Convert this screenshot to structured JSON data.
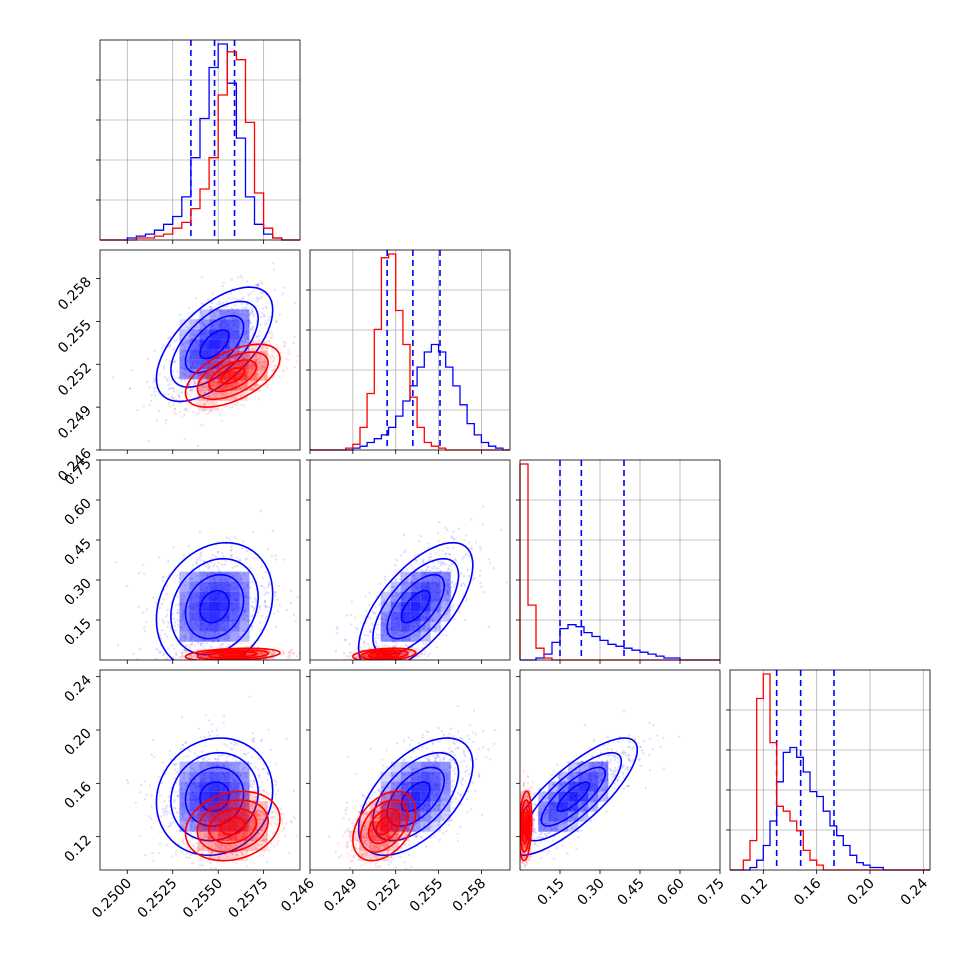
{
  "chart_data": {
    "type": "corner",
    "grid": true,
    "colors": {
      "blue": "#0000ff",
      "red": "#ff0000"
    },
    "series": [
      {
        "color": "#0000ff",
        "quantiles_dashed": {
          "p0": [
            0.2535,
            0.2548,
            0.2559
          ],
          "p1": [
            0.2514,
            0.2532,
            0.2551
          ],
          "p2": [
            0.15,
            0.23,
            0.39
          ],
          "p3": [
            0.13,
            0.148,
            0.173
          ]
        },
        "marginals": {
          "p0": {
            "edges": [
              0.2485,
              0.249,
              0.2495,
              0.25,
              0.2505,
              0.251,
              0.2515,
              0.252,
              0.2525,
              0.253,
              0.2535,
              0.254,
              0.2545,
              0.255,
              0.2555,
              0.256,
              0.2565,
              0.257,
              0.2575,
              0.258,
              0.2585,
              0.259,
              0.2595
            ],
            "counts": [
              0,
              0,
              0,
              1,
              2,
              3,
              5,
              8,
              12,
              22,
              42,
              62,
              88,
              100,
              80,
              52,
              22,
              8,
              3,
              1,
              0,
              0
            ]
          },
          "p1": {
            "edges": [
              0.246,
              0.2465,
              0.247,
              0.2475,
              0.248,
              0.2485,
              0.249,
              0.2495,
              0.25,
              0.2505,
              0.251,
              0.2515,
              0.252,
              0.2525,
              0.253,
              0.2535,
              0.254,
              0.2545,
              0.255,
              0.2555,
              0.256,
              0.2565,
              0.257,
              0.2575,
              0.258,
              0.2585,
              0.259,
              0.2595,
              0.26
            ],
            "counts": [
              0,
              0,
              0,
              0,
              0,
              0,
              1,
              2,
              4,
              6,
              8,
              12,
              18,
              26,
              34,
              44,
              52,
              56,
              52,
              44,
              34,
              24,
              14,
              8,
              4,
              2,
              1,
              0
            ]
          },
          "p2": {
            "edges": [
              0.0,
              0.03,
              0.06,
              0.09,
              0.12,
              0.15,
              0.18,
              0.21,
              0.24,
              0.27,
              0.3,
              0.33,
              0.36,
              0.39,
              0.42,
              0.45,
              0.48,
              0.51,
              0.54,
              0.57,
              0.6,
              0.63,
              0.66,
              0.69,
              0.72,
              0.75
            ],
            "counts": [
              0,
              0,
              1,
              3,
              9,
              16,
              18,
              17,
              14,
              12,
              10,
              8,
              7,
              6,
              5,
              4,
              3,
              2,
              1,
              1,
              0,
              0,
              0,
              0,
              0
            ]
          },
          "p3": {
            "edges": [
              0.095,
              0.1,
              0.105,
              0.11,
              0.115,
              0.12,
              0.125,
              0.13,
              0.135,
              0.14,
              0.145,
              0.15,
              0.155,
              0.16,
              0.165,
              0.17,
              0.175,
              0.18,
              0.185,
              0.19,
              0.195,
              0.2,
              0.205,
              0.21,
              0.215,
              0.22,
              0.225,
              0.23,
              0.235,
              0.24,
              0.245
            ],
            "counts": [
              0,
              0,
              0,
              1,
              4,
              10,
              20,
              36,
              48,
              50,
              46,
              40,
              32,
              30,
              24,
              18,
              14,
              10,
              6,
              3,
              2,
              1,
              1,
              0,
              0,
              0,
              0,
              0,
              0,
              0
            ]
          }
        },
        "joint": {
          "p1|p0": {
            "mean": [
              0.2548,
              0.2534
            ],
            "sd": [
              0.0016,
              0.002
            ],
            "rho": 0.6
          },
          "p2|p0": {
            "mean": [
              0.2548,
              0.2
            ],
            "sd": [
              0.0016,
              0.12
            ],
            "rho": 0.2
          },
          "p2|p1": {
            "mean": [
              0.2534,
              0.2
            ],
            "sd": [
              0.002,
              0.12
            ],
            "rho": 0.65
          },
          "p3|p0": {
            "mean": [
              0.2548,
              0.15
            ],
            "sd": [
              0.0016,
              0.022
            ],
            "rho": 0.1
          },
          "p3|p1": {
            "mean": [
              0.2534,
              0.15
            ],
            "sd": [
              0.002,
              0.022
            ],
            "rho": 0.55
          },
          "p3|p2": {
            "mean": [
              0.2,
              0.15
            ],
            "sd": [
              0.12,
              0.022
            ],
            "rho": 0.8
          }
        }
      },
      {
        "color": "#ff0000",
        "marginals": {
          "p0": {
            "edges": [
              0.2485,
              0.249,
              0.2495,
              0.25,
              0.2505,
              0.251,
              0.2515,
              0.252,
              0.2525,
              0.253,
              0.2535,
              0.254,
              0.2545,
              0.255,
              0.2555,
              0.256,
              0.2565,
              0.257,
              0.2575,
              0.258,
              0.2585,
              0.259,
              0.2595
            ],
            "counts": [
              0,
              0,
              0,
              0,
              1,
              1,
              2,
              3,
              6,
              9,
              16,
              26,
              42,
              74,
              96,
              92,
              60,
              24,
              6,
              1,
              0,
              0
            ]
          },
          "p1": {
            "edges": [
              0.246,
              0.2465,
              0.247,
              0.2475,
              0.248,
              0.2485,
              0.249,
              0.2495,
              0.25,
              0.2505,
              0.251,
              0.2515,
              0.252,
              0.2525,
              0.253,
              0.2535,
              0.254,
              0.2545,
              0.255,
              0.2555,
              0.256,
              0.2565,
              0.257,
              0.2575,
              0.258,
              0.2585,
              0.259,
              0.2595,
              0.26
            ],
            "counts": [
              0,
              0,
              0,
              0,
              0,
              1,
              3,
              12,
              30,
              64,
              102,
              104,
              74,
              56,
              28,
              12,
              4,
              2,
              1,
              0,
              0,
              0,
              0,
              0,
              0,
              0,
              0,
              0
            ]
          },
          "p2": {
            "edges": [
              0.0,
              0.03,
              0.06,
              0.09,
              0.12,
              0.15,
              0.18,
              0.21,
              0.24,
              0.27,
              0.3,
              0.33,
              0.36,
              0.39,
              0.42,
              0.45,
              0.48,
              0.51,
              0.54,
              0.57,
              0.6,
              0.63,
              0.66,
              0.69,
              0.72,
              0.75
            ],
            "counts": [
              100,
              28,
              6,
              1,
              0,
              0,
              0,
              0,
              0,
              0,
              0,
              0,
              0,
              0,
              0,
              0,
              0,
              0,
              0,
              0,
              0,
              0,
              0,
              0,
              0
            ]
          },
          "p3": {
            "edges": [
              0.095,
              0.1,
              0.105,
              0.11,
              0.115,
              0.12,
              0.125,
              0.13,
              0.135,
              0.14,
              0.145,
              0.15,
              0.155,
              0.16,
              0.165,
              0.17,
              0.175,
              0.18,
              0.185,
              0.19,
              0.195,
              0.2,
              0.205,
              0.21,
              0.215,
              0.22,
              0.225,
              0.23,
              0.235,
              0.24,
              0.245
            ],
            "counts": [
              0,
              0,
              4,
              12,
              70,
              80,
              52,
              26,
              24,
              20,
              16,
              8,
              4,
              2,
              0,
              0,
              0,
              0,
              0,
              0,
              0,
              0,
              0,
              0,
              0,
              0,
              0,
              0,
              0,
              0
            ]
          }
        },
        "joint": {
          "p1|p0": {
            "mean": [
              0.2558,
              0.2512
            ],
            "sd": [
              0.0013,
              0.0011
            ],
            "rho": 0.55
          },
          "p2|p0": {
            "mean": [
              0.2558,
              0.02
            ],
            "sd": [
              0.0013,
              0.012
            ],
            "rho": 0.3
          },
          "p2|p1": {
            "mean": [
              0.2512,
              0.02
            ],
            "sd": [
              0.0011,
              0.012
            ],
            "rho": 0.3
          },
          "p3|p0": {
            "mean": [
              0.2558,
              0.128
            ],
            "sd": [
              0.0013,
              0.013
            ],
            "rho": 0.2
          },
          "p3|p1": {
            "mean": [
              0.2512,
              0.128
            ],
            "sd": [
              0.0011,
              0.013
            ],
            "rho": 0.4
          },
          "p3|p2": {
            "mean": [
              0.02,
              0.128
            ],
            "sd": [
              0.012,
              0.013
            ],
            "rho": 0.2
          }
        }
      }
    ],
    "params": [
      {
        "range": [
          0.2485,
          0.2595
        ],
        "ticks": [
          0.25,
          0.2525,
          0.255,
          0.2575
        ],
        "tick_labels": [
          "0.2500",
          "0.2525",
          "0.2550",
          "0.2575"
        ]
      },
      {
        "range": [
          0.246,
          0.26
        ],
        "ticks": [
          0.246,
          0.249,
          0.252,
          0.255,
          0.258
        ],
        "tick_labels": [
          "0.246",
          "0.249",
          "0.252",
          "0.255",
          "0.258"
        ]
      },
      {
        "range": [
          0.0,
          0.75
        ],
        "ticks": [
          0.15,
          0.3,
          0.45,
          0.6,
          0.75
        ],
        "tick_labels": [
          "0.15",
          "0.30",
          "0.45",
          "0.60",
          "0.75"
        ]
      },
      {
        "range": [
          0.095,
          0.245
        ],
        "ticks": [
          0.12,
          0.16,
          0.2,
          0.24
        ],
        "tick_labels": [
          "0.12",
          "0.16",
          "0.20",
          "0.24"
        ]
      }
    ]
  }
}
